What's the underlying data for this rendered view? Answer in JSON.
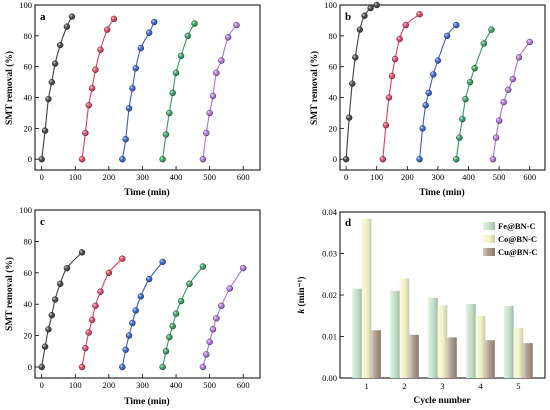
{
  "chart_data": [
    {
      "type": "scatter",
      "panel": "a",
      "xlabel": "Time (min)",
      "ylabel": "SMT removal (%)",
      "xlim": [
        -20,
        650
      ],
      "ylim": [
        -7,
        100
      ],
      "xticks": [
        0,
        100,
        200,
        300,
        400,
        500,
        600
      ],
      "yticks": [
        0,
        20,
        40,
        60,
        80,
        100
      ],
      "series": [
        {
          "color": "#404040",
          "points": [
            [
              0,
              0
            ],
            [
              10,
              18.5
            ],
            [
              20,
              39
            ],
            [
              30,
              50
            ],
            [
              40,
              62
            ],
            [
              55,
              74
            ],
            [
              75,
              86
            ],
            [
              90,
              92.5
            ]
          ]
        },
        {
          "color": "#e0405a",
          "points": [
            [
              120,
              0
            ],
            [
              130,
              17
            ],
            [
              140,
              35
            ],
            [
              150,
              46
            ],
            [
              160,
              58
            ],
            [
              175,
              71
            ],
            [
              195,
              84
            ],
            [
              215,
              91
            ]
          ]
        },
        {
          "color": "#2f5fd0",
          "points": [
            [
              240,
              0
            ],
            [
              250,
              13
            ],
            [
              260,
              33
            ],
            [
              270,
              46
            ],
            [
              280,
              59
            ],
            [
              295,
              72
            ],
            [
              320,
              82
            ],
            [
              335,
              89
            ]
          ]
        },
        {
          "color": "#2ca05a",
          "points": [
            [
              360,
              0
            ],
            [
              370,
              16
            ],
            [
              380,
              30
            ],
            [
              390,
              43
            ],
            [
              400,
              56
            ],
            [
              415,
              67
            ],
            [
              435,
              80
            ],
            [
              455,
              88
            ]
          ]
        },
        {
          "color": "#b070e0",
          "points": [
            [
              480,
              0
            ],
            [
              490,
              17
            ],
            [
              500,
              30
            ],
            [
              510,
              41
            ],
            [
              520,
              56
            ],
            [
              535,
              64
            ],
            [
              555,
              79
            ],
            [
              580,
              87
            ]
          ]
        }
      ]
    },
    {
      "type": "scatter",
      "panel": "b",
      "xlabel": "Time (min)",
      "ylabel": "SMT removal (%)",
      "xlim": [
        -20,
        650
      ],
      "ylim": [
        -7,
        100
      ],
      "xticks": [
        0,
        100,
        200,
        300,
        400,
        500,
        600
      ],
      "yticks": [
        0,
        20,
        40,
        60,
        80,
        100
      ],
      "series": [
        {
          "color": "#404040",
          "points": [
            [
              0,
              0
            ],
            [
              10,
              27
            ],
            [
              20,
              49
            ],
            [
              30,
              66
            ],
            [
              45,
              84
            ],
            [
              60,
              93
            ],
            [
              80,
              98
            ],
            [
              100,
              100
            ]
          ]
        },
        {
          "color": "#e0405a",
          "points": [
            [
              120,
              0
            ],
            [
              130,
              22
            ],
            [
              140,
              40
            ],
            [
              150,
              54
            ],
            [
              160,
              65
            ],
            [
              175,
              78
            ],
            [
              195,
              87
            ],
            [
              240,
              94
            ]
          ]
        },
        {
          "color": "#2f5fd0",
          "points": [
            [
              240,
              0
            ],
            [
              250,
              20
            ],
            [
              260,
              35
            ],
            [
              270,
              43
            ],
            [
              285,
              55
            ],
            [
              300,
              64
            ],
            [
              330,
              80
            ],
            [
              360,
              87
            ]
          ]
        },
        {
          "color": "#2ca05a",
          "points": [
            [
              360,
              0
            ],
            [
              370,
              14
            ],
            [
              380,
              26
            ],
            [
              390,
              39
            ],
            [
              405,
              50
            ],
            [
              420,
              59
            ],
            [
              450,
              75
            ],
            [
              475,
              84
            ]
          ]
        },
        {
          "color": "#b070e0",
          "points": [
            [
              480,
              0
            ],
            [
              490,
              14
            ],
            [
              500,
              25
            ],
            [
              515,
              37
            ],
            [
              530,
              45
            ],
            [
              545,
              52
            ],
            [
              565,
              66
            ],
            [
              600,
              76
            ]
          ]
        }
      ]
    },
    {
      "type": "scatter",
      "panel": "c",
      "xlabel": "Time (min)",
      "ylabel": "SMT removal (%)",
      "xlim": [
        -20,
        650
      ],
      "ylim": [
        -7,
        100
      ],
      "xticks": [
        0,
        100,
        200,
        300,
        400,
        500,
        600
      ],
      "yticks": [
        0,
        20,
        40,
        60,
        80,
        100
      ],
      "series": [
        {
          "color": "#404040",
          "points": [
            [
              0,
              0
            ],
            [
              10,
              13
            ],
            [
              20,
              24
            ],
            [
              30,
              33
            ],
            [
              40,
              43
            ],
            [
              55,
              53
            ],
            [
              75,
              63
            ],
            [
              120,
              73
            ]
          ]
        },
        {
          "color": "#e0405a",
          "points": [
            [
              120,
              0
            ],
            [
              130,
              12
            ],
            [
              140,
              22
            ],
            [
              150,
              30
            ],
            [
              160,
              39
            ],
            [
              175,
              48
            ],
            [
              200,
              60
            ],
            [
              240,
              69
            ]
          ]
        },
        {
          "color": "#2f5fd0",
          "points": [
            [
              240,
              0
            ],
            [
              250,
              11
            ],
            [
              260,
              20
            ],
            [
              270,
              28
            ],
            [
              280,
              36
            ],
            [
              295,
              45
            ],
            [
              320,
              56
            ],
            [
              360,
              67
            ]
          ]
        },
        {
          "color": "#2ca05a",
          "points": [
            [
              360,
              0
            ],
            [
              370,
              10
            ],
            [
              380,
              19
            ],
            [
              390,
              26
            ],
            [
              400,
              34
            ],
            [
              415,
              42
            ],
            [
              440,
              53
            ],
            [
              480,
              64
            ]
          ]
        },
        {
          "color": "#b070e0",
          "points": [
            [
              480,
              0
            ],
            [
              490,
              8
            ],
            [
              500,
              16
            ],
            [
              510,
              24
            ],
            [
              520,
              31
            ],
            [
              535,
              39
            ],
            [
              560,
              50
            ],
            [
              600,
              63
            ]
          ]
        }
      ]
    },
    {
      "type": "bar",
      "panel": "d",
      "xlabel": "Cycle number",
      "ylabel": "k (min⁻¹)",
      "ylabel_main": "k",
      "ylabel_unit": " (min⁻¹)",
      "ylim": [
        0,
        0.04
      ],
      "yticks": [
        "0.00",
        "0.01",
        "0.02",
        "0.03",
        "0.04"
      ],
      "categories": [
        "1",
        "2",
        "3",
        "4",
        "5"
      ],
      "legend_position": "top-right",
      "series": [
        {
          "name": "Fe@BN-C",
          "color": "#bfe0c3",
          "values": [
            0.0215,
            0.021,
            0.0193,
            0.0178,
            0.0173
          ]
        },
        {
          "name": "Co@BN-C",
          "color": "#f1f1c6",
          "values": [
            0.0384,
            0.024,
            0.0175,
            0.015,
            0.012
          ]
        },
        {
          "name": "Cu@BN-C",
          "color": "#a38f7d",
          "values": [
            0.0115,
            0.0104,
            0.0098,
            0.0091,
            0.0084
          ]
        }
      ]
    }
  ]
}
